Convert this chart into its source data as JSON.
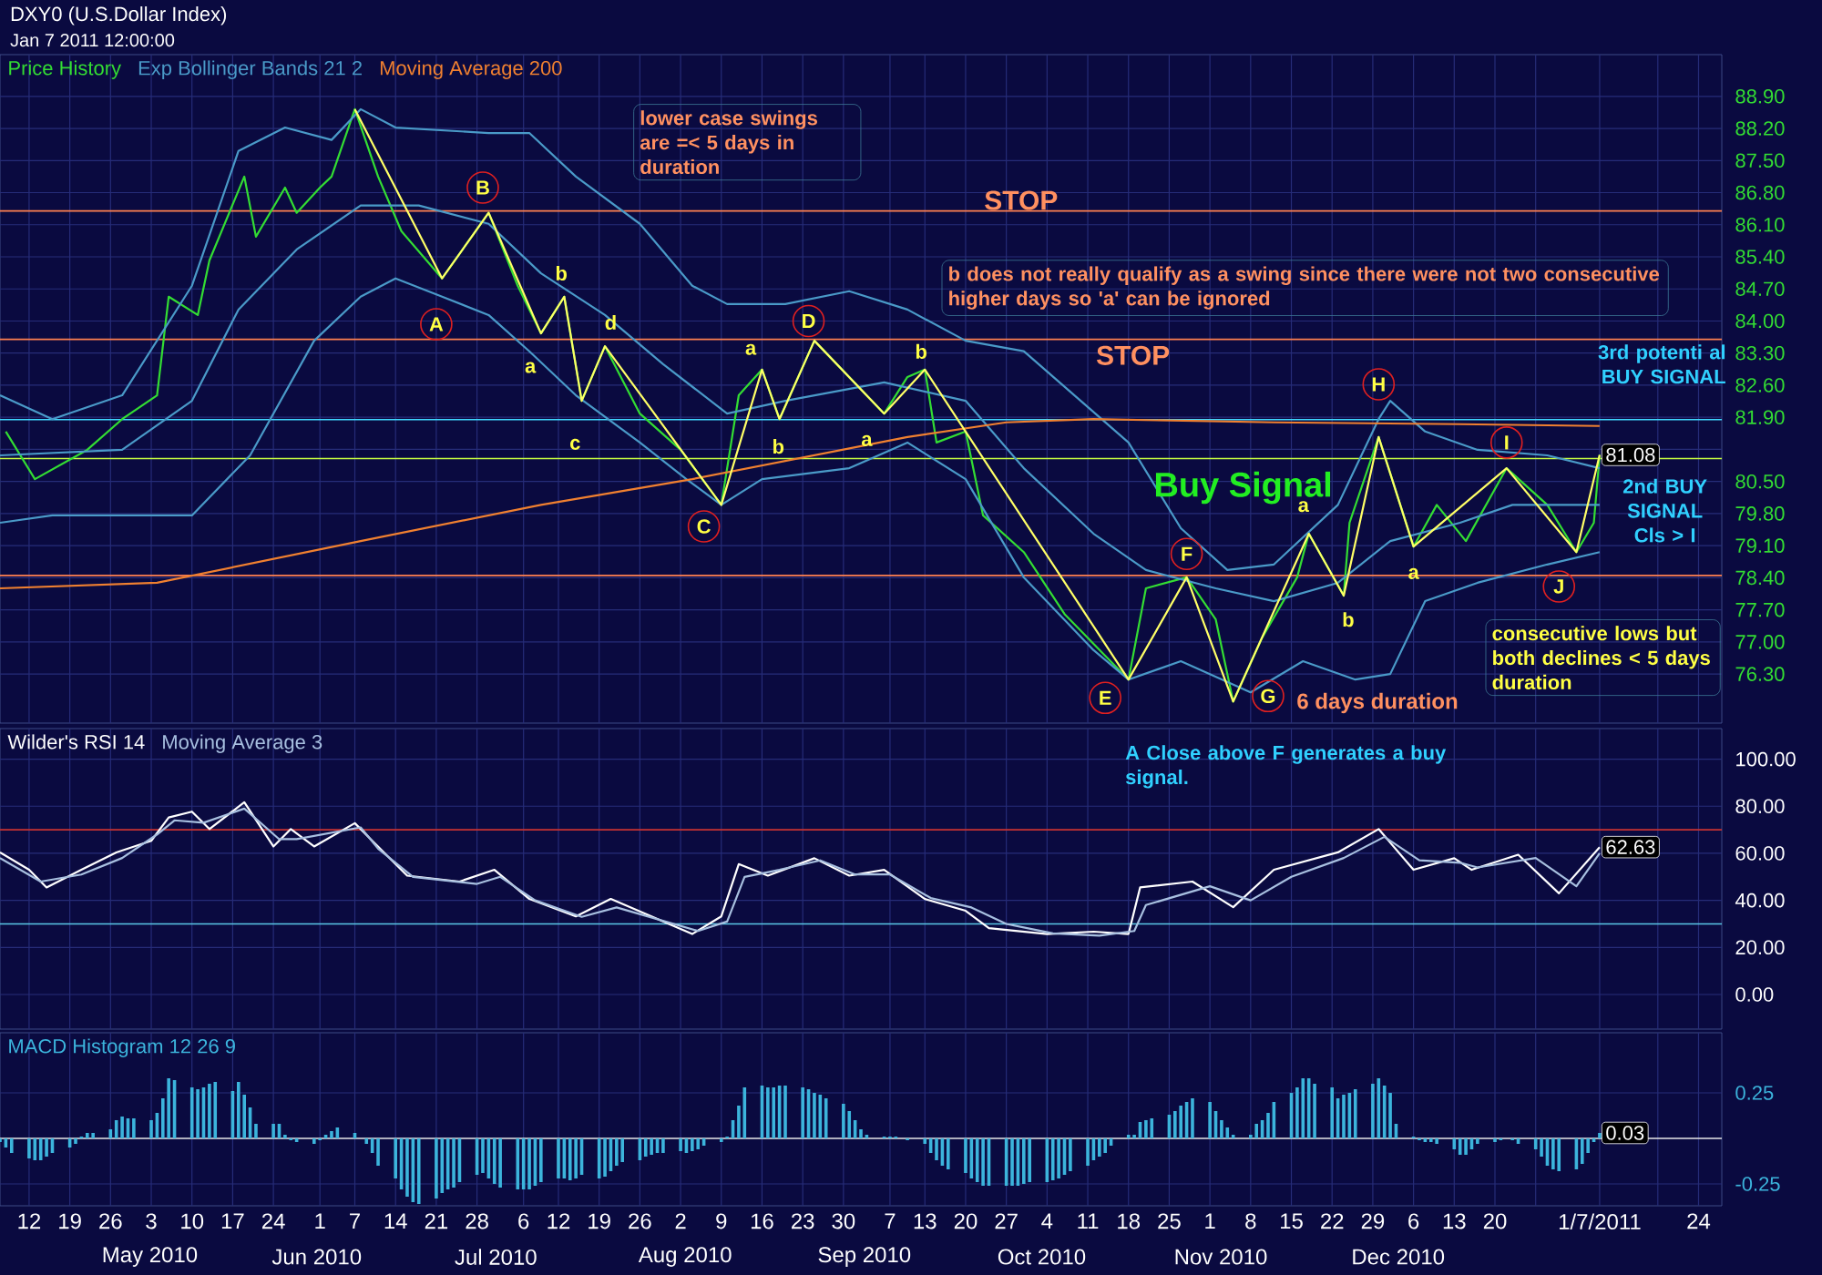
{
  "chart_data": [
    {
      "type": "line",
      "title": "DXY0 (U.S.Dollar Index)",
      "subtitle": "Jan 7 2011 12:00:00",
      "xlim": [
        "2010-04-07",
        "2011-01-28"
      ],
      "ylim": [
        75.23,
        89.81
      ],
      "grid": true,
      "legend": "top left",
      "tick_labels": "y",
      "xticks": [
        "2010-04-12",
        "2010-04-19",
        "2010-04-26",
        "2010-05-03",
        "2010-05-10",
        "2010-05-17",
        "2010-05-24",
        "2010-06-01",
        "2010-06-07",
        "2010-06-14",
        "2010-06-21",
        "2010-06-28",
        "2010-07-06",
        "2010-07-12",
        "2010-07-19",
        "2010-07-26",
        "2010-08-02",
        "2010-08-09",
        "2010-08-16",
        "2010-08-23",
        "2010-08-30",
        "2010-09-07",
        "2010-09-13",
        "2010-09-20",
        "2010-09-27",
        "2010-10-04",
        "2010-10-11",
        "2010-10-18",
        "2010-10-25",
        "2010-11-01",
        "2010-11-08",
        "2010-11-15",
        "2010-11-22",
        "2010-11-29",
        "2010-12-06",
        "2010-12-13",
        "2010-12-20",
        "2010-12-27",
        "2011-01-07",
        "2011-01-17",
        "2011-01-24"
      ],
      "yticks": [
        {
          "value": 88.9,
          "label": "88.90"
        },
        {
          "value": 88.2,
          "label": "88.20"
        },
        {
          "value": 87.5,
          "label": "87.50"
        },
        {
          "value": 86.8,
          "label": "86.80"
        },
        {
          "value": 86.1,
          "label": "86.10"
        },
        {
          "value": 85.4,
          "label": "85.40"
        },
        {
          "value": 84.7,
          "label": "84.70"
        },
        {
          "value": 84.0,
          "label": "84.00"
        },
        {
          "value": 83.3,
          "label": "83.30"
        },
        {
          "value": 82.6,
          "label": "82.60"
        },
        {
          "value": 81.9,
          "label": "81.90"
        },
        {
          "value": 81.2,
          "label": null
        },
        {
          "value": 80.5,
          "label": "80.50"
        },
        {
          "value": 79.8,
          "label": "79.80"
        },
        {
          "value": 79.1,
          "label": "79.10"
        },
        {
          "value": 78.4,
          "label": "78.40"
        },
        {
          "value": 77.7,
          "label": "77.70"
        },
        {
          "value": 77.0,
          "label": "77.00"
        },
        {
          "value": 76.3,
          "label": "76.30"
        }
      ],
      "series": [
        {
          "name": "Price History",
          "color": "#33dd33",
          "x": [
            "2010-04-08",
            "2010-04-13",
            "2010-04-22",
            "2010-04-28",
            "2010-05-04",
            "2010-05-06",
            "2010-05-11",
            "2010-05-13",
            "2010-05-19",
            "2010-05-21",
            "2010-05-26",
            "2010-05-28",
            "2010-06-01",
            "2010-06-03",
            "2010-06-07",
            "2010-06-11",
            "2010-06-15",
            "2010-06-22",
            "2010-06-30",
            "2010-07-05",
            "2010-07-09",
            "2010-07-13",
            "2010-07-16",
            "2010-07-20",
            "2010-07-26",
            "2010-08-02",
            "2010-08-09",
            "2010-08-12",
            "2010-08-16",
            "2010-08-19",
            "2010-08-25",
            "2010-09-06",
            "2010-09-10",
            "2010-09-13",
            "2010-09-15",
            "2010-09-20",
            "2010-09-23",
            "2010-09-30",
            "2010-10-07",
            "2010-10-18",
            "2010-10-21",
            "2010-10-28",
            "2010-11-02",
            "2010-11-05",
            "2010-11-10",
            "2010-11-16",
            "2010-11-18",
            "2010-11-24",
            "2010-11-25",
            "2010-11-30",
            "2010-12-06",
            "2010-12-10",
            "2010-12-15",
            "2010-12-22",
            "2010-12-29",
            "2011-01-03",
            "2011-01-06",
            "2011-01-07"
          ],
          "values": [
            81.59,
            80.55,
            81.19,
            81.86,
            82.38,
            84.53,
            84.13,
            85.32,
            87.15,
            85.84,
            86.91,
            86.36,
            86.91,
            87.15,
            88.62,
            87.15,
            85.96,
            84.93,
            86.36,
            84.77,
            83.73,
            84.53,
            82.26,
            83.45,
            81.98,
            81.19,
            79.99,
            82.38,
            82.94,
            81.86,
            83.57,
            81.98,
            82.78,
            82.94,
            81.35,
            81.59,
            79.76,
            78.96,
            77.61,
            76.18,
            78.17,
            78.41,
            77.49,
            75.7,
            77.1,
            78.41,
            79.36,
            78.01,
            79.6,
            81.47,
            79.08,
            79.99,
            79.2,
            80.79,
            79.99,
            78.96,
            79.6,
            81.08
          ]
        },
        {
          "name": "Exp Bollinger Bands 21 2",
          "color": "#4a9ac8",
          "x": [
            "2010-04-07",
            "2010-04-16",
            "2010-04-28",
            "2010-05-10",
            "2010-05-18",
            "2010-05-26",
            "2010-06-03",
            "2010-06-08",
            "2010-06-14",
            "2010-06-30",
            "2010-07-07",
            "2010-07-15",
            "2010-07-26",
            "2010-08-04",
            "2010-08-10",
            "2010-08-20",
            "2010-08-31",
            "2010-09-10",
            "2010-09-20",
            "2010-09-30",
            "2010-10-18",
            "2010-10-27",
            "2010-11-04",
            "2010-11-12",
            "2010-11-23",
            "2010-11-30",
            "2010-12-02",
            "2010-12-08",
            "2010-12-17",
            "2010-12-29",
            "2011-01-07"
          ],
          "values": [
            82.38,
            81.86,
            82.38,
            84.77,
            87.71,
            88.22,
            87.95,
            88.62,
            88.22,
            88.1,
            88.1,
            87.15,
            86.12,
            84.77,
            84.37,
            84.37,
            84.65,
            84.25,
            83.57,
            83.34,
            81.35,
            79.48,
            78.57,
            78.69,
            79.99,
            81.86,
            82.26,
            81.59,
            81.19,
            81.07,
            80.79
          ]
        },
        {
          "color": "#4a9ac8",
          "x": [
            "2010-04-07",
            "2010-04-28",
            "2010-05-10",
            "2010-05-18",
            "2010-05-28",
            "2010-06-08",
            "2010-06-18",
            "2010-06-30",
            "2010-07-09",
            "2010-07-20",
            "2010-07-30",
            "2010-08-10",
            "2010-08-20",
            "2010-09-06",
            "2010-09-20",
            "2010-09-30",
            "2010-10-12",
            "2010-10-21",
            "2010-11-02",
            "2010-11-12",
            "2010-11-23",
            "2010-12-02",
            "2010-12-14",
            "2010-12-23",
            "2011-01-07"
          ],
          "values": [
            81.07,
            81.19,
            82.26,
            84.25,
            85.56,
            86.52,
            86.52,
            86.12,
            85.04,
            84.13,
            83.06,
            81.98,
            82.26,
            82.66,
            82.26,
            80.79,
            79.36,
            78.57,
            78.17,
            77.89,
            78.29,
            79.2,
            79.6,
            79.99,
            79.99
          ]
        },
        {
          "color": "#4a9ac8",
          "x": [
            "2010-04-07",
            "2010-04-16",
            "2010-05-10",
            "2010-05-20",
            "2010-05-31",
            "2010-06-08",
            "2010-06-14",
            "2010-06-22",
            "2010-06-30",
            "2010-07-07",
            "2010-07-15",
            "2010-07-26",
            "2010-08-03",
            "2010-08-09",
            "2010-08-16",
            "2010-08-31",
            "2010-09-10",
            "2010-09-20",
            "2010-09-30",
            "2010-10-12",
            "2010-10-18",
            "2010-10-27",
            "2010-11-08",
            "2010-11-17",
            "2010-11-26",
            "2010-12-02",
            "2010-12-08",
            "2010-12-17",
            "2010-12-29",
            "2011-01-07"
          ],
          "values": [
            79.6,
            79.76,
            79.76,
            81.07,
            83.57,
            84.53,
            84.93,
            84.53,
            84.13,
            83.34,
            82.38,
            81.35,
            80.55,
            79.99,
            80.55,
            80.79,
            81.35,
            80.55,
            78.41,
            76.82,
            76.18,
            76.58,
            75.9,
            76.58,
            76.18,
            76.3,
            77.89,
            78.29,
            78.69,
            78.96
          ]
        },
        {
          "name": "Moving Average 200",
          "color": "#f08030",
          "x": [
            "2010-04-07",
            "2010-05-04",
            "2010-06-08",
            "2010-07-09",
            "2010-08-04",
            "2010-09-10",
            "2010-09-27",
            "2010-10-12",
            "2010-11-12",
            "2010-12-14",
            "2011-01-07"
          ],
          "values": [
            78.17,
            78.29,
            79.2,
            79.99,
            80.55,
            81.47,
            81.79,
            81.86,
            81.79,
            81.75,
            81.71
          ]
        },
        {
          "color": "#ffff66",
          "x": [
            "2010-06-07",
            "2010-06-22",
            "2010-06-30",
            "2010-07-09",
            "2010-07-13",
            "2010-07-16",
            "2010-07-20",
            "2010-08-09",
            "2010-08-16",
            "2010-08-19",
            "2010-08-25",
            "2010-09-06",
            "2010-09-13",
            "2010-10-18",
            "2010-10-28",
            "2010-11-05",
            "2010-11-18",
            "2010-11-24",
            "2010-11-30",
            "2010-12-06",
            "2010-12-22",
            "2011-01-03",
            "2011-01-07"
          ],
          "values": [
            88.62,
            84.93,
            86.36,
            83.73,
            84.53,
            82.26,
            83.45,
            79.99,
            82.94,
            81.86,
            83.57,
            81.98,
            82.94,
            76.18,
            78.41,
            75.7,
            79.36,
            78.01,
            81.47,
            79.08,
            80.79,
            78.96,
            81.08
          ]
        }
      ],
      "ref_lines": [
        {
          "axis": "y",
          "value": 86.4,
          "color": "#ff8050"
        },
        {
          "axis": "y",
          "value": 83.6,
          "color": "#ff8050"
        },
        {
          "axis": "y",
          "value": 81.85,
          "color": "#40d8ff"
        },
        {
          "axis": "y",
          "value": 81.0,
          "color": "#c8ff40"
        },
        {
          "axis": "y",
          "value": 78.45,
          "color": "#ff8050"
        }
      ],
      "annotations": [
        {
          "text": "A",
          "x": "2010-06-21",
          "y": 83.93
        },
        {
          "text": "B",
          "x": "2010-06-29",
          "y": 86.91
        },
        {
          "text": "C",
          "x": "2010-08-06",
          "y": 79.52
        },
        {
          "text": "D",
          "x": "2010-08-24",
          "y": 84.0
        },
        {
          "text": "E",
          "x": "2010-10-14",
          "y": 75.78
        },
        {
          "text": "F",
          "x": "2010-10-28",
          "y": 78.92
        },
        {
          "text": "G",
          "x": "2010-11-11",
          "y": 75.82
        },
        {
          "text": "H",
          "x": "2010-11-30",
          "y": 82.62
        },
        {
          "text": "I",
          "x": "2010-12-22",
          "y": 81.35
        },
        {
          "text": "J",
          "x": "2010-12-31",
          "y": 78.21
        },
        "b",
        "a",
        "c",
        {
          "text": "d",
          "x": "2010-07-21",
          "y": 83.97
        },
        "a",
        "b",
        {
          "text": "a",
          "x": "2010-09-03",
          "y": 81.39
        },
        "b",
        "a",
        "b",
        {
          "text": "a",
          "x": "2010-12-06",
          "y": 78.49
        },
        "lower case swings are =< 5 days in duration",
        "b does not really qualify as a swing since there were not two consecutive higher days so 'a' can be ignored",
        "STOP",
        "STOP",
        "Buy Signal",
        "6 days duration",
        "consecutive lows but both declines < 5 days duration",
        "2nd BUY SIGNAL Cls > I",
        "3rd potenti al BUY SIGNAL",
        {
          "text": "81.08",
          "x": "2011-01-07",
          "y": 81.08
        }
      ]
    },
    {
      "type": "line",
      "xlim": [
        "2010-04-07",
        "2011-01-28"
      ],
      "ylim": [
        -14.7,
        113
      ],
      "grid": true,
      "legend": "top left",
      "tick_labels": "y",
      "xticks": [
        "2010-04-12",
        "2010-04-19",
        "2010-04-26",
        "2010-05-03",
        "2010-05-10",
        "2010-05-17",
        "2010-05-24",
        "2010-06-01",
        "2010-06-07",
        "2010-06-14",
        "2010-06-21",
        "2010-06-28",
        "2010-07-06",
        "2010-07-12",
        "2010-07-19",
        "2010-07-26",
        "2010-08-02",
        "2010-08-09",
        "2010-08-16",
        "2010-08-23",
        "2010-08-30",
        "2010-09-07",
        "2010-09-13",
        "2010-09-20",
        "2010-09-27",
        "2010-10-04",
        "2010-10-11",
        "2010-10-18",
        "2010-10-25",
        "2010-11-01",
        "2010-11-08",
        "2010-11-15",
        "2010-11-22",
        "2010-11-29",
        "2010-12-06",
        "2010-12-13",
        "2010-12-20",
        "2010-12-27",
        "2011-01-07",
        "2011-01-17",
        "2011-01-24"
      ],
      "yticks": [
        {
          "value": 0,
          "label": "0.00"
        },
        {
          "value": 20,
          "label": "20.00"
        },
        {
          "value": 40,
          "label": "40.00"
        },
        {
          "value": 60,
          "label": "60.00"
        },
        {
          "value": 80,
          "label": "80.00"
        },
        {
          "value": 100,
          "label": "100.00"
        }
      ],
      "series": [
        {
          "name": "Wilder's RSI 14",
          "color": "#ffffff",
          "x": [
            "2010-04-07",
            "2010-04-12",
            "2010-04-15",
            "2010-04-21",
            "2010-04-27",
            "2010-05-03",
            "2010-05-06",
            "2010-05-10",
            "2010-05-13",
            "2010-05-19",
            "2010-05-24",
            "2010-05-27",
            "2010-05-31",
            "2010-06-07",
            "2010-06-10",
            "2010-06-16",
            "2010-06-25",
            "2010-07-01",
            "2010-07-07",
            "2010-07-15",
            "2010-07-21",
            "2010-07-28",
            "2010-08-04",
            "2010-08-09",
            "2010-08-12",
            "2010-08-17",
            "2010-08-25",
            "2010-08-31",
            "2010-09-06",
            "2010-09-13",
            "2010-09-20",
            "2010-09-24",
            "2010-10-04",
            "2010-10-12",
            "2010-10-18",
            "2010-10-20",
            "2010-10-29",
            "2010-11-05",
            "2010-11-12",
            "2010-11-23",
            "2010-11-30",
            "2010-12-06",
            "2010-12-13",
            "2010-12-16",
            "2010-12-24",
            "2010-12-31",
            "2011-01-07"
          ],
          "values": [
            60.4,
            53,
            45.5,
            53,
            60.4,
            65.3,
            75.2,
            77.7,
            70.3,
            81.7,
            62.9,
            70.3,
            62.9,
            72.8,
            65.3,
            50.5,
            48,
            53,
            40.6,
            33.2,
            40.6,
            33.2,
            25.7,
            33.2,
            55.4,
            50.5,
            57.9,
            50.5,
            53,
            40.6,
            35.6,
            28.2,
            25.7,
            26.7,
            25.7,
            45.5,
            48,
            37.1,
            53,
            60.4,
            70.3,
            53,
            57.9,
            53,
            59.4,
            43,
            62.63
          ]
        },
        {
          "name": "Moving Average 3",
          "color": "#a8c0e0",
          "x": [
            "2010-04-07",
            "2010-04-14",
            "2010-04-21",
            "2010-04-28",
            "2010-05-04",
            "2010-05-07",
            "2010-05-12",
            "2010-05-19",
            "2010-05-25",
            "2010-05-28",
            "2010-06-08",
            "2010-06-11",
            "2010-06-17",
            "2010-06-28",
            "2010-07-02",
            "2010-07-08",
            "2010-07-16",
            "2010-07-22",
            "2010-07-29",
            "2010-08-05",
            "2010-08-10",
            "2010-08-13",
            "2010-08-19",
            "2010-08-26",
            "2010-09-01",
            "2010-09-07",
            "2010-09-14",
            "2010-09-21",
            "2010-09-27",
            "2010-10-05",
            "2010-10-13",
            "2010-10-19",
            "2010-10-21",
            "2010-11-01",
            "2010-11-08",
            "2010-11-15",
            "2010-11-24",
            "2010-12-01",
            "2010-12-07",
            "2010-12-14",
            "2010-12-17",
            "2010-12-27",
            "2011-01-03",
            "2011-01-07"
          ],
          "values": [
            58,
            48,
            51,
            58,
            68,
            74,
            73,
            79,
            66,
            66,
            71,
            62,
            50,
            47,
            50,
            40,
            33,
            37,
            32,
            27,
            31,
            50,
            53,
            57,
            51,
            51,
            41,
            37,
            30,
            26,
            25,
            27,
            38,
            46,
            40,
            50,
            58,
            67,
            57,
            56,
            54,
            58,
            46,
            60
          ]
        }
      ],
      "ref_lines": [
        {
          "axis": "y",
          "value": 70,
          "color": "#c83232"
        },
        {
          "axis": "y",
          "value": 30,
          "color": "#5ac8e6"
        }
      ],
      "annotations": [
        "A Close above F generates a buy signal.",
        {
          "text": "62.63",
          "x": "2011-01-07",
          "y": 62.63
        }
      ]
    },
    {
      "type": "bar",
      "xlim": [
        "2010-04-07",
        "2011-01-28"
      ],
      "ylim": [
        -0.37,
        0.58
      ],
      "grid": true,
      "legend": "top left",
      "xticks": [
        {
          "value": "2010-04-12",
          "label": "12"
        },
        {
          "value": "2010-04-19",
          "label": "19"
        },
        {
          "value": "2010-04-26",
          "label": "26"
        },
        {
          "value": "2010-05-03",
          "label": "3"
        },
        {
          "value": "2010-05-10",
          "label": "10"
        },
        {
          "value": "2010-05-17",
          "label": "17"
        },
        {
          "value": "2010-05-24",
          "label": "24"
        },
        {
          "value": "2010-06-01",
          "label": "1"
        },
        {
          "value": "2010-06-07",
          "label": "7"
        },
        {
          "value": "2010-06-14",
          "label": "14"
        },
        {
          "value": "2010-06-21",
          "label": "21"
        },
        {
          "value": "2010-06-28",
          "label": "28"
        },
        {
          "value": "2010-07-06",
          "label": "6"
        },
        {
          "value": "2010-07-12",
          "label": "12"
        },
        {
          "value": "2010-07-19",
          "label": "19"
        },
        {
          "value": "2010-07-26",
          "label": "26"
        },
        {
          "value": "2010-08-02",
          "label": "2"
        },
        {
          "value": "2010-08-09",
          "label": "9"
        },
        {
          "value": "2010-08-16",
          "label": "16"
        },
        {
          "value": "2010-08-23",
          "label": "23"
        },
        {
          "value": "2010-08-30",
          "label": "30"
        },
        {
          "value": "2010-09-07",
          "label": "7"
        },
        {
          "value": "2010-09-13",
          "label": "13"
        },
        {
          "value": "2010-09-20",
          "label": "20"
        },
        {
          "value": "2010-09-27",
          "label": "27"
        },
        {
          "value": "2010-10-04",
          "label": "4"
        },
        {
          "value": "2010-10-11",
          "label": "11"
        },
        {
          "value": "2010-10-18",
          "label": "18"
        },
        {
          "value": "2010-10-25",
          "label": "25"
        },
        {
          "value": "2010-11-01",
          "label": "1"
        },
        {
          "value": "2010-11-08",
          "label": "8"
        },
        {
          "value": "2010-11-15",
          "label": "15"
        },
        {
          "value": "2010-11-22",
          "label": "22"
        },
        {
          "value": "2010-11-29",
          "label": "29"
        },
        {
          "value": "2010-12-06",
          "label": "6"
        },
        {
          "value": "2010-12-13",
          "label": "13"
        },
        {
          "value": "2010-12-20",
          "label": "20"
        },
        {
          "value": "2010-12-27",
          "label": null
        },
        {
          "value": "2011-01-07",
          "label": "1/7/2011"
        },
        {
          "value": "2011-01-17",
          "label": null
        },
        {
          "value": "2011-01-24",
          "label": "24"
        }
      ],
      "yticks": [
        {
          "value": -0.25,
          "label": "-0.25"
        },
        {
          "value": 0.25,
          "label": "0.25"
        }
      ],
      "series": [
        {
          "name": "MACD Histogram 12 26 9",
          "color": "#3cb4dc",
          "x": [
            "2010-04-07",
            "2010-04-08",
            "2010-04-09",
            "2010-04-12",
            "2010-04-13",
            "2010-04-14",
            "2010-04-15",
            "2010-04-16",
            "2010-04-19",
            "2010-04-20",
            "2010-04-21",
            "2010-04-22",
            "2010-04-23",
            "2010-04-26",
            "2010-04-27",
            "2010-04-28",
            "2010-04-29",
            "2010-04-30",
            "2010-05-03",
            "2010-05-04",
            "2010-05-05",
            "2010-05-06",
            "2010-05-07",
            "2010-05-10",
            "2010-05-11",
            "2010-05-12",
            "2010-05-13",
            "2010-05-14",
            "2010-05-17",
            "2010-05-18",
            "2010-05-19",
            "2010-05-20",
            "2010-05-21",
            "2010-05-24",
            "2010-05-25",
            "2010-05-26",
            "2010-05-27",
            "2010-05-28",
            "2010-05-31",
            "2010-06-01",
            "2010-06-02",
            "2010-06-03",
            "2010-06-04",
            "2010-06-07",
            "2010-06-08",
            "2010-06-09",
            "2010-06-10",
            "2010-06-11",
            "2010-06-14",
            "2010-06-15",
            "2010-06-16",
            "2010-06-17",
            "2010-06-18",
            "2010-06-21",
            "2010-06-22",
            "2010-06-23",
            "2010-06-24",
            "2010-06-25",
            "2010-06-28",
            "2010-06-29",
            "2010-06-30",
            "2010-07-01",
            "2010-07-02",
            "2010-07-05",
            "2010-07-06",
            "2010-07-07",
            "2010-07-08",
            "2010-07-09",
            "2010-07-12",
            "2010-07-13",
            "2010-07-14",
            "2010-07-15",
            "2010-07-16",
            "2010-07-19",
            "2010-07-20",
            "2010-07-21",
            "2010-07-22",
            "2010-07-23",
            "2010-07-26",
            "2010-07-27",
            "2010-07-28",
            "2010-07-29",
            "2010-07-30",
            "2010-08-02",
            "2010-08-03",
            "2010-08-04",
            "2010-08-05",
            "2010-08-06",
            "2010-08-09",
            "2010-08-10",
            "2010-08-11",
            "2010-08-12",
            "2010-08-13",
            "2010-08-16",
            "2010-08-17",
            "2010-08-18",
            "2010-08-19",
            "2010-08-20",
            "2010-08-23",
            "2010-08-24",
            "2010-08-25",
            "2010-08-26",
            "2010-08-27",
            "2010-08-30",
            "2010-08-31",
            "2010-09-01",
            "2010-09-02",
            "2010-09-03",
            "2010-09-06",
            "2010-09-07",
            "2010-09-08",
            "2010-09-09",
            "2010-09-10",
            "2010-09-13",
            "2010-09-14",
            "2010-09-15",
            "2010-09-16",
            "2010-09-17",
            "2010-09-20",
            "2010-09-21",
            "2010-09-22",
            "2010-09-23",
            "2010-09-24",
            "2010-09-27",
            "2010-09-28",
            "2010-09-29",
            "2010-09-30",
            "2010-10-01",
            "2010-10-04",
            "2010-10-05",
            "2010-10-06",
            "2010-10-07",
            "2010-10-08",
            "2010-10-11",
            "2010-10-12",
            "2010-10-13",
            "2010-10-14",
            "2010-10-15",
            "2010-10-18",
            "2010-10-19",
            "2010-10-20",
            "2010-10-21",
            "2010-10-22",
            "2010-10-25",
            "2010-10-26",
            "2010-10-27",
            "2010-10-28",
            "2010-10-29",
            "2010-11-01",
            "2010-11-02",
            "2010-11-03",
            "2010-11-04",
            "2010-11-05",
            "2010-11-08",
            "2010-11-09",
            "2010-11-10",
            "2010-11-11",
            "2010-11-12",
            "2010-11-15",
            "2010-11-16",
            "2010-11-17",
            "2010-11-18",
            "2010-11-19",
            "2010-11-22",
            "2010-11-23",
            "2010-11-24",
            "2010-11-25",
            "2010-11-26",
            "2010-11-29",
            "2010-11-30",
            "2010-12-01",
            "2010-12-02",
            "2010-12-03",
            "2010-12-06",
            "2010-12-07",
            "2010-12-08",
            "2010-12-09",
            "2010-12-10",
            "2010-12-13",
            "2010-12-14",
            "2010-12-15",
            "2010-12-16",
            "2010-12-17",
            "2010-12-20",
            "2010-12-21",
            "2010-12-22",
            "2010-12-23",
            "2010-12-24",
            "2010-12-27",
            "2010-12-28",
            "2010-12-29",
            "2010-12-30",
            "2010-12-31",
            "2011-01-03",
            "2011-01-04",
            "2011-01-05",
            "2011-01-06",
            "2011-01-07"
          ],
          "values": [
            -0.02,
            -0.05,
            -0.08,
            -0.11,
            -0.12,
            -0.12,
            -0.1,
            -0.08,
            -0.05,
            -0.03,
            0.01,
            0.03,
            0.03,
            0.05,
            0.1,
            0.12,
            0.11,
            0.11,
            0.1,
            0.14,
            0.22,
            0.33,
            0.32,
            0.28,
            0.27,
            0.28,
            0.3,
            0.31,
            0.26,
            0.31,
            0.24,
            0.17,
            0.08,
            0.08,
            0.08,
            0.02,
            -0.01,
            -0.02,
            -0.03,
            -0.01,
            0.02,
            0.04,
            0.06,
            0.03,
            0.0,
            -0.03,
            -0.08,
            -0.15,
            -0.22,
            -0.28,
            -0.32,
            -0.35,
            -0.36,
            -0.33,
            -0.3,
            -0.28,
            -0.27,
            -0.24,
            -0.2,
            -0.19,
            -0.22,
            -0.25,
            -0.27,
            -0.28,
            -0.28,
            -0.28,
            -0.26,
            -0.24,
            -0.22,
            -0.22,
            -0.23,
            -0.22,
            -0.2,
            -0.22,
            -0.21,
            -0.18,
            -0.15,
            -0.13,
            -0.12,
            -0.1,
            -0.09,
            -0.08,
            -0.08,
            -0.07,
            -0.08,
            -0.07,
            -0.06,
            -0.04,
            -0.02,
            0.01,
            0.1,
            0.18,
            0.28,
            0.29,
            0.28,
            0.28,
            0.29,
            0.29,
            0.28,
            0.27,
            0.25,
            0.24,
            0.22,
            0.19,
            0.15,
            0.1,
            0.05,
            0.02,
            0.01,
            0.01,
            0.01,
            0.0,
            -0.01,
            -0.03,
            -0.08,
            -0.12,
            -0.15,
            -0.17,
            -0.19,
            -0.22,
            -0.24,
            -0.26,
            -0.26,
            -0.26,
            -0.26,
            -0.26,
            -0.25,
            -0.24,
            -0.24,
            -0.23,
            -0.22,
            -0.2,
            -0.18,
            -0.15,
            -0.12,
            -0.1,
            -0.08,
            -0.04,
            0.02,
            0.02,
            0.09,
            0.1,
            0.11,
            0.13,
            0.15,
            0.18,
            0.2,
            0.22,
            0.2,
            0.15,
            0.1,
            0.06,
            0.02,
            0.02,
            0.08,
            0.1,
            0.14,
            0.2,
            0.25,
            0.28,
            0.33,
            0.33,
            0.3,
            0.28,
            0.22,
            0.24,
            0.25,
            0.27,
            0.3,
            0.33,
            0.29,
            0.25,
            0.08,
            0.01,
            -0.01,
            -0.02,
            -0.02,
            -0.03,
            -0.06,
            -0.09,
            -0.09,
            -0.06,
            -0.03,
            -0.02,
            -0.01,
            0.0,
            -0.01,
            -0.03,
            -0.06,
            -0.1,
            -0.15,
            -0.17,
            -0.18,
            -0.17,
            -0.14,
            -0.08,
            -0.02,
            0.03
          ]
        }
      ],
      "ref_lines": [
        {
          "axis": "y",
          "value": 0,
          "color": "#e8e8e8"
        }
      ],
      "annotations": [
        {
          "text": "0.03",
          "x": "2011-01-07",
          "y": 0.03
        },
        "May 2010",
        "Jun 2010",
        "Jul 2010",
        "Aug 2010",
        "Sep 2010",
        "Oct 2010",
        "Nov 2010",
        "Dec 2010"
      ]
    }
  ]
}
